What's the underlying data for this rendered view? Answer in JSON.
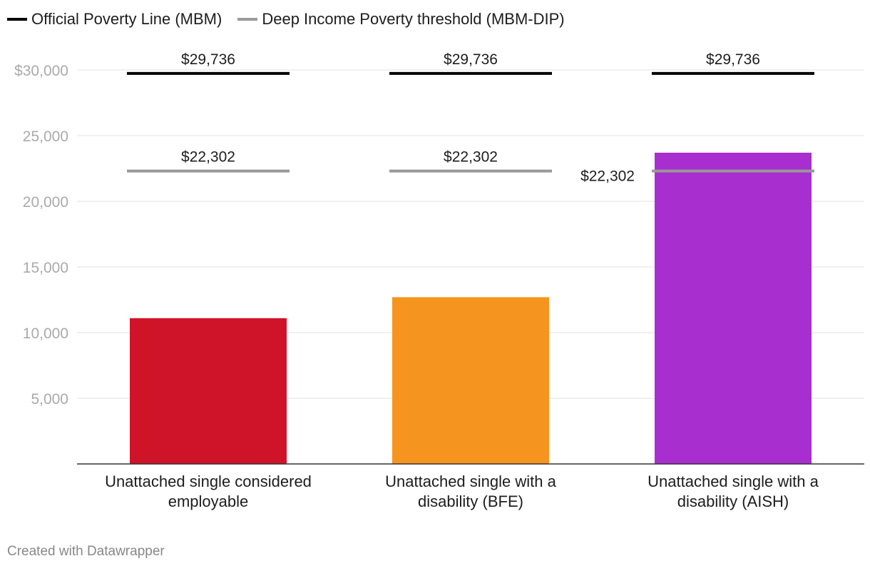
{
  "legend": {
    "items": [
      {
        "label": "Official Poverty Line (MBM)",
        "color": "#000000"
      },
      {
        "label": "Deep Income Poverty threshold (MBM-DIP)",
        "color": "#999999"
      }
    ]
  },
  "footer": {
    "credit": "Created with Datawrapper"
  },
  "chart_data": {
    "type": "bar",
    "title": "",
    "xlabel": "",
    "ylabel": "",
    "ylim": [
      0,
      30000
    ],
    "yticks": [
      {
        "value": 5000,
        "label": "5,000"
      },
      {
        "value": 10000,
        "label": "10,000"
      },
      {
        "value": 15000,
        "label": "15,000"
      },
      {
        "value": 20000,
        "label": "20,000"
      },
      {
        "value": 25000,
        "label": "25,000"
      },
      {
        "value": 30000,
        "label": "$30,000"
      }
    ],
    "grid": true,
    "legend_position": "top-left",
    "categories": [
      {
        "lines": [
          "Unattached single considered",
          "employable"
        ]
      },
      {
        "lines": [
          "Unattached single with a",
          "disability (BFE)"
        ]
      },
      {
        "lines": [
          "Unattached single with a",
          "disability (AISH)"
        ]
      }
    ],
    "values": [
      11100,
      12700,
      23700
    ],
    "bar_colors": [
      "#cf1429",
      "#f5951f",
      "#a82ecf"
    ],
    "reference_lines": [
      {
        "name": "Official Poverty Line (MBM)",
        "color": "#000000",
        "values": [
          29736,
          29736,
          29736
        ],
        "labels": [
          "$29,736",
          "$29,736",
          "$29,736"
        ]
      },
      {
        "name": "Deep Income Poverty threshold (MBM-DIP)",
        "color": "#999999",
        "values": [
          22302,
          22302,
          22302
        ],
        "labels": [
          "$22,302",
          "$22,302",
          "$22,302"
        ]
      }
    ]
  }
}
